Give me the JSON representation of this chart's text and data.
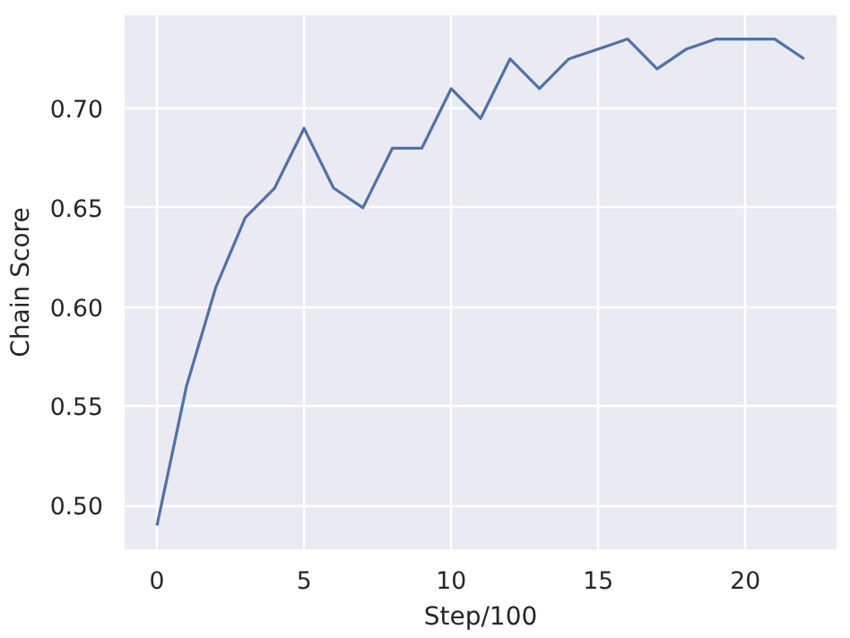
{
  "chart_data": {
    "type": "line",
    "xlabel": "Step/100",
    "ylabel": "Chain Score",
    "x": [
      0,
      1,
      2,
      3,
      4,
      5,
      6,
      7,
      8,
      9,
      10,
      11,
      12,
      13,
      14,
      15,
      16,
      17,
      18,
      19,
      20,
      21,
      22
    ],
    "series": [
      {
        "color": "#4c72b0",
        "values": [
          0.49,
          0.56,
          0.61,
          0.645,
          0.66,
          0.69,
          0.66,
          0.65,
          0.68,
          0.68,
          0.71,
          0.695,
          0.725,
          0.71,
          0.725,
          0.73,
          0.735,
          0.72,
          0.73,
          0.735,
          0.735,
          0.735,
          0.725
        ]
      }
    ],
    "xlim": [
      -1.1,
      23.1
    ],
    "ylim": [
      0.478,
      0.747
    ],
    "xticks": [
      0,
      5,
      10,
      15,
      20
    ],
    "yticks": [
      {
        "value": 0.5,
        "label": "0.50"
      },
      0.55,
      {
        "value": 0.6,
        "label": "0.60"
      },
      0.65,
      {
        "value": 0.7,
        "label": "0.70"
      }
    ],
    "grid": true,
    "line_style": "solid",
    "marker": "none"
  }
}
